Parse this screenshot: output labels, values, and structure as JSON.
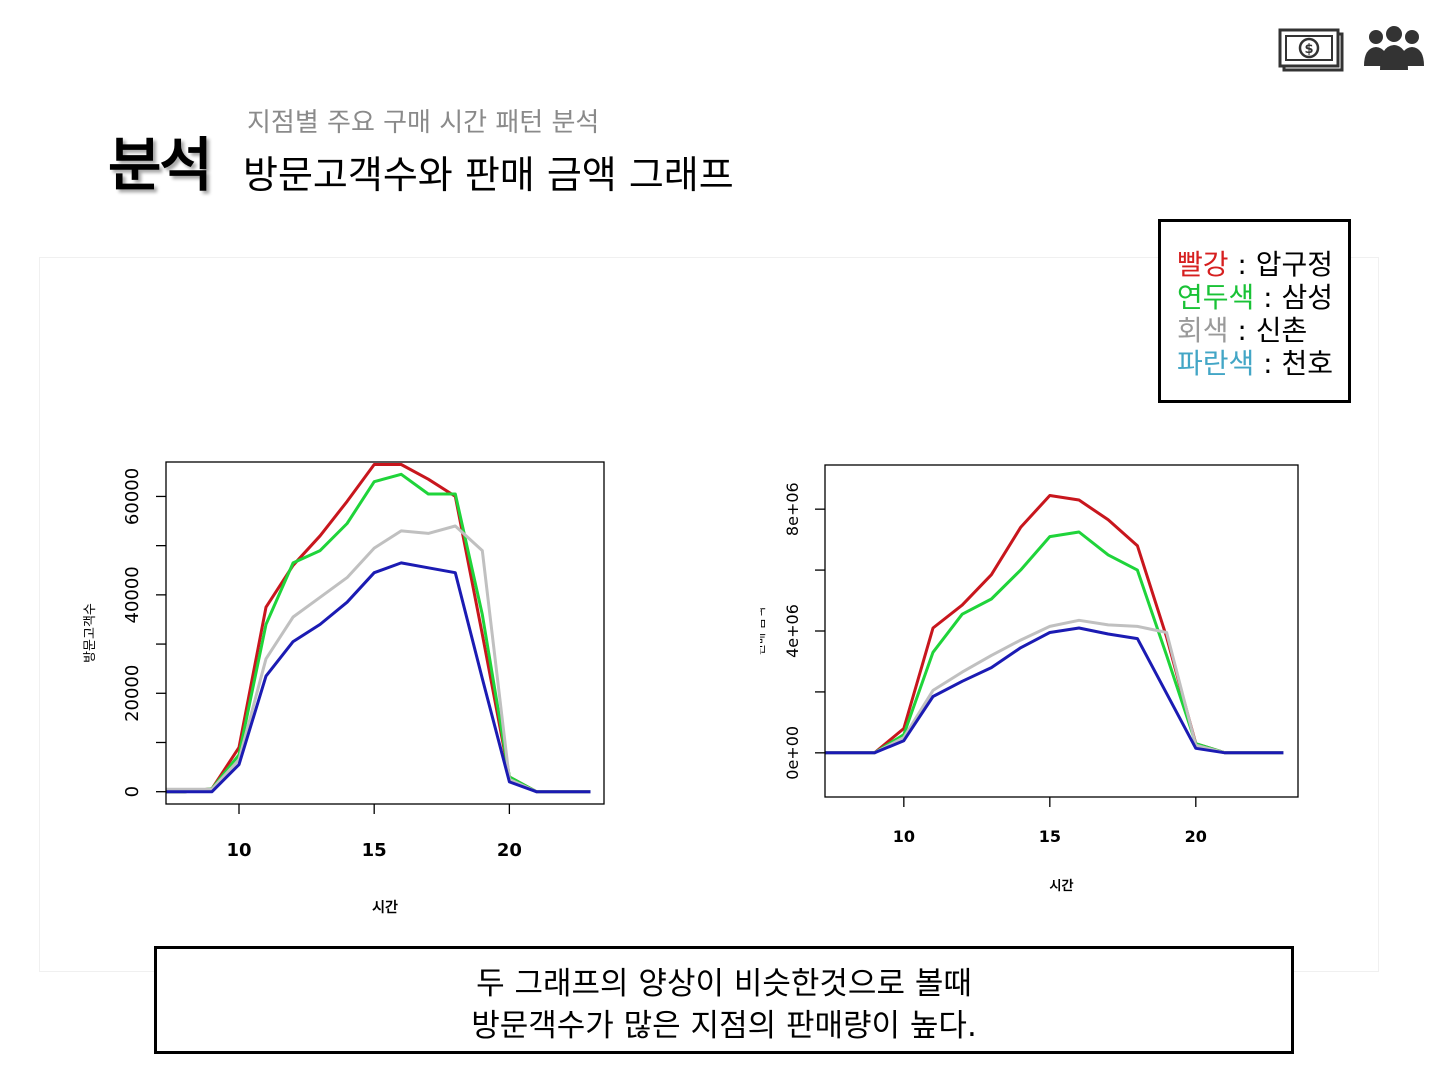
{
  "header": {
    "main": "분석",
    "subtitle": "지점별 주요 구매 시간 패턴 분석",
    "title": "방문고객수와 판매 금액 그래프",
    "icons": [
      "money-icon",
      "people-icon"
    ]
  },
  "legend": {
    "items": [
      {
        "color_name": "빨강",
        "separator": " : ",
        "store": "압구정",
        "color": "#d61f1f"
      },
      {
        "color_name": "연두색",
        "separator": " : ",
        "store": "삼성",
        "color": "#19c236"
      },
      {
        "color_name": "회색",
        "separator": " : ",
        "store": "신촌",
        "color": "#9a9a9a"
      },
      {
        "color_name": "파란색",
        "separator": " : ",
        "store": "천호",
        "color": "#43a6c6"
      }
    ]
  },
  "conclusion": {
    "line1": "두 그래프의 양상이 비슷한것으로 볼때",
    "line2": "방문객수가 많은 지점의 판매량이 높다."
  },
  "chart_data": [
    {
      "type": "line",
      "xlabel": "시간",
      "ylabel": "방문고객수",
      "xlim": [
        7.3,
        23.5
      ],
      "ylim": [
        -2500,
        67000
      ],
      "xticks": [
        10,
        15,
        20
      ],
      "xtick_labels": [
        "10",
        "15",
        "20"
      ],
      "yticks": [
        0,
        10000,
        20000,
        30000,
        40000,
        50000,
        60000
      ],
      "ytick_labels": [
        "0",
        "",
        "20000",
        "",
        "40000",
        "",
        "60000"
      ],
      "grid": false,
      "x": [
        7,
        8,
        9,
        10,
        11,
        12,
        13,
        14,
        15,
        16,
        17,
        18,
        19,
        20,
        21,
        22,
        23
      ],
      "series": [
        {
          "color": "#c8161d",
          "values": [
            0,
            0,
            600,
            9000,
            37500,
            46000,
            52000,
            59000,
            66500,
            66500,
            63500,
            60000,
            32000,
            3000,
            0,
            0,
            0
          ]
        },
        {
          "color": "#1fd43a",
          "values": [
            0,
            0,
            600,
            7500,
            34000,
            46500,
            49000,
            54500,
            63000,
            64500,
            60500,
            60500,
            36000,
            3000,
            0,
            0,
            0
          ]
        },
        {
          "color": "#c0c0c0",
          "values": [
            500,
            500,
            500,
            6500,
            27000,
            35500,
            39500,
            43500,
            49500,
            53000,
            52500,
            54000,
            49000,
            2500,
            0,
            0,
            0
          ]
        },
        {
          "color": "#1b1bb3",
          "values": [
            0,
            0,
            0,
            5500,
            23500,
            30500,
            34000,
            38500,
            44500,
            46500,
            45500,
            44500,
            23000,
            2000,
            0,
            0,
            0
          ]
        }
      ]
    },
    {
      "type": "line",
      "xlabel": "시간",
      "ylabel": "판매 금액",
      "xlim": [
        7.3,
        23.5
      ],
      "ylim": [
        -1450000,
        9450000
      ],
      "xticks": [
        10,
        15,
        20
      ],
      "xtick_labels": [
        "10",
        "15",
        "20"
      ],
      "yticks": [
        0,
        2000000,
        4000000,
        6000000,
        8000000
      ],
      "ytick_labels": [
        "0e+00",
        "",
        "4e+06",
        "",
        "8e+06"
      ],
      "grid": false,
      "x": [
        7,
        8,
        9,
        10,
        11,
        12,
        13,
        14,
        15,
        16,
        17,
        18,
        19,
        20,
        21,
        22,
        23
      ],
      "series": [
        {
          "color": "#c8161d",
          "values": [
            0,
            0,
            0,
            800000,
            4100000,
            4850000,
            5850000,
            7400000,
            8450000,
            8300000,
            7650000,
            6800000,
            3800000,
            300000,
            0,
            0,
            0
          ]
        },
        {
          "color": "#1fd43a",
          "values": [
            0,
            0,
            0,
            600000,
            3300000,
            4550000,
            5050000,
            6000000,
            7100000,
            7250000,
            6500000,
            6000000,
            3200000,
            300000,
            0,
            0,
            0
          ]
        },
        {
          "color": "#c0c0c0",
          "values": [
            0,
            0,
            0,
            500000,
            2050000,
            2650000,
            3200000,
            3700000,
            4150000,
            4350000,
            4200000,
            4150000,
            3950000,
            250000,
            0,
            0,
            0
          ]
        },
        {
          "color": "#1b1bb3",
          "values": [
            0,
            0,
            0,
            400000,
            1850000,
            2350000,
            2800000,
            3450000,
            3950000,
            4100000,
            3900000,
            3750000,
            1950000,
            150000,
            0,
            0,
            0
          ]
        }
      ]
    }
  ]
}
